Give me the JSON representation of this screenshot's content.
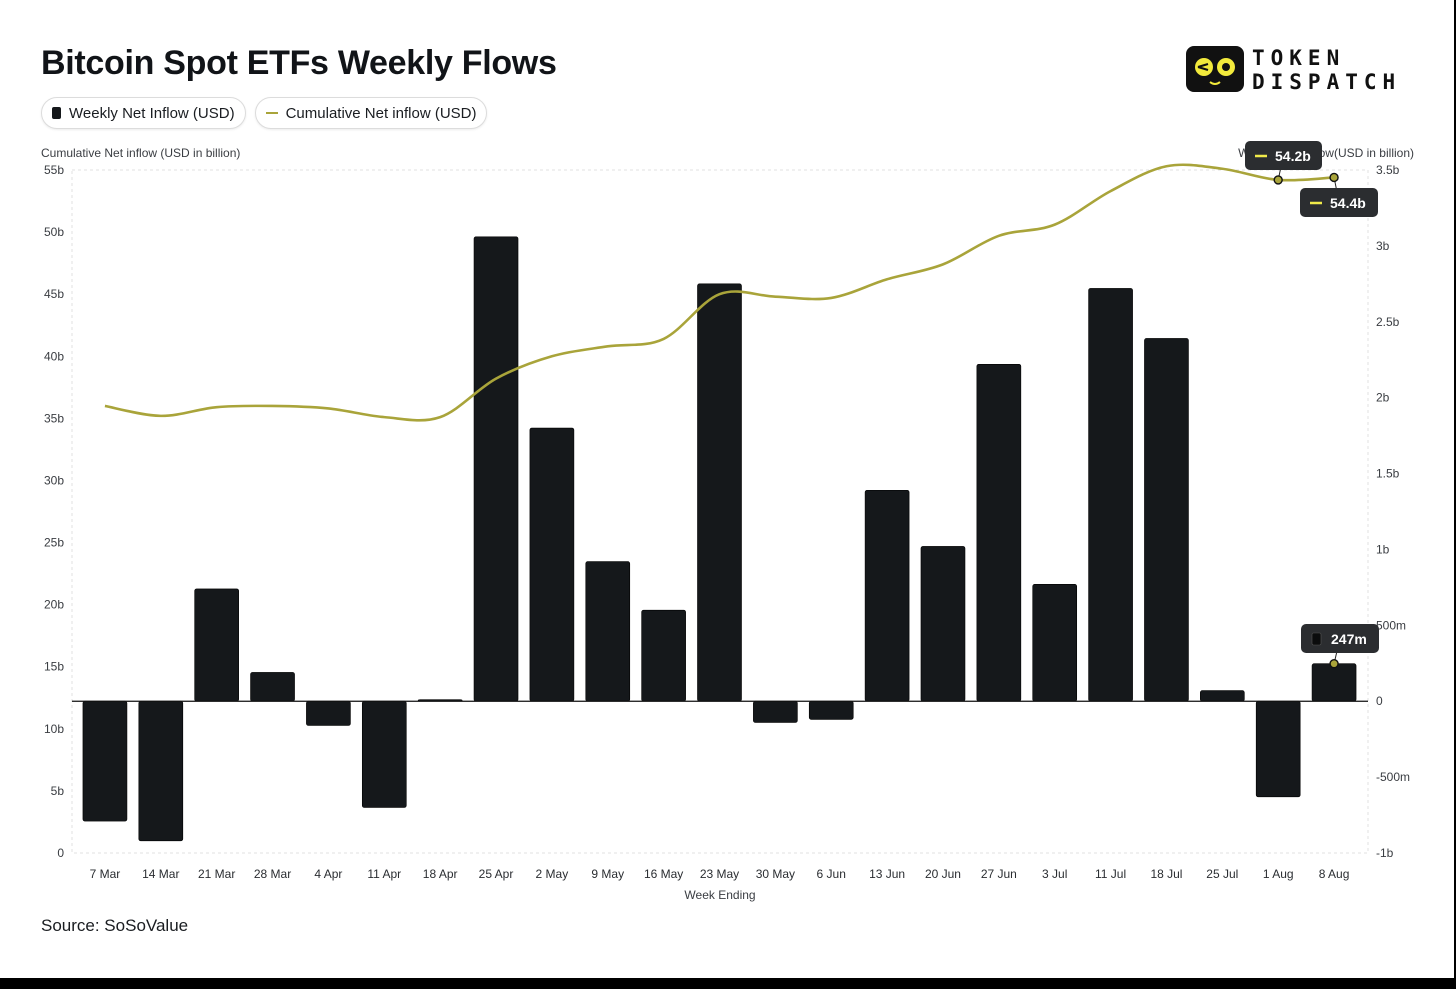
{
  "title": "Bitcoin Spot ETFs Weekly Flows",
  "legend": {
    "weekly_label": "Weekly Net Inflow (USD)",
    "cumulative_label": "Cumulative Net inflow (USD)"
  },
  "logo": {
    "line1": "TOKEN",
    "line2": "DISPATCH"
  },
  "source": "Source: SoSoValue",
  "colors": {
    "bar": "#15181b",
    "line": "#a9a43a",
    "tooltip": "#2b2d30",
    "grid": "#e2e2e2"
  },
  "chart_data": {
    "type": "bar",
    "combo_line": true,
    "left_axis_title": "Cumulative Net inflow (USD in billion)",
    "right_axis_title": "Weekly Net Inflow(USD in billion)",
    "xlabel": "Week Ending",
    "left_ylim": [
      0,
      55
    ],
    "left_ticks": [
      {
        "v": 0,
        "label": "0"
      },
      {
        "v": 5,
        "label": "5b"
      },
      {
        "v": 10,
        "label": "10b"
      },
      {
        "v": 15,
        "label": "15b"
      },
      {
        "v": 20,
        "label": "20b"
      },
      {
        "v": 25,
        "label": "25b"
      },
      {
        "v": 30,
        "label": "30b"
      },
      {
        "v": 35,
        "label": "35b"
      },
      {
        "v": 40,
        "label": "40b"
      },
      {
        "v": 45,
        "label": "45b"
      },
      {
        "v": 50,
        "label": "50b"
      },
      {
        "v": 55,
        "label": "55b"
      }
    ],
    "right_ylim": [
      -1,
      3.5
    ],
    "right_ticks": [
      {
        "v": -1,
        "label": "-1b"
      },
      {
        "v": -0.5,
        "label": "-500m"
      },
      {
        "v": 0,
        "label": "0"
      },
      {
        "v": 0.5,
        "label": "500m"
      },
      {
        "v": 1,
        "label": "1b"
      },
      {
        "v": 1.5,
        "label": "1.5b"
      },
      {
        "v": 2,
        "label": "2b"
      },
      {
        "v": 2.5,
        "label": "2.5b"
      },
      {
        "v": 3,
        "label": "3b"
      },
      {
        "v": 3.5,
        "label": "3.5b"
      }
    ],
    "categories": [
      "7 Mar",
      "14 Mar",
      "21 Mar",
      "28 Mar",
      "4 Apr",
      "11 Apr",
      "18 Apr",
      "25 Apr",
      "2 May",
      "9 May",
      "16 May",
      "23 May",
      "30 May",
      "6 Jun",
      "13 Jun",
      "20 Jun",
      "27 Jun",
      "3 Jul",
      "11 Jul",
      "18 Jul",
      "25 Jul",
      "1 Aug",
      "8 Aug"
    ],
    "series": [
      {
        "name": "Weekly Net Inflow (USD)",
        "axis": "right",
        "unit": "billion USD",
        "values": [
          -0.79,
          -0.92,
          0.74,
          0.19,
          -0.16,
          -0.7,
          0.01,
          3.06,
          1.8,
          0.92,
          0.6,
          2.75,
          -0.14,
          -0.12,
          1.39,
          1.02,
          2.22,
          0.77,
          2.72,
          2.39,
          0.07,
          -0.63,
          0.247
        ]
      },
      {
        "name": "Cumulative Net inflow (USD)",
        "axis": "left",
        "unit": "billion USD",
        "values": [
          36.0,
          35.2,
          35.9,
          36.0,
          35.8,
          35.1,
          35.1,
          38.2,
          40.0,
          40.8,
          41.4,
          45.0,
          44.8,
          44.7,
          46.2,
          47.4,
          49.7,
          50.6,
          53.3,
          55.3,
          55.1,
          54.2,
          54.4
        ]
      }
    ],
    "tooltips": [
      {
        "label": "54.2b",
        "series": "Cumulative Net inflow (USD)",
        "category": "1 Aug"
      },
      {
        "label": "54.4b",
        "series": "Cumulative Net inflow (USD)",
        "category": "8 Aug"
      },
      {
        "label": "247m",
        "series": "Weekly Net Inflow (USD)",
        "category": "8 Aug"
      }
    ]
  }
}
